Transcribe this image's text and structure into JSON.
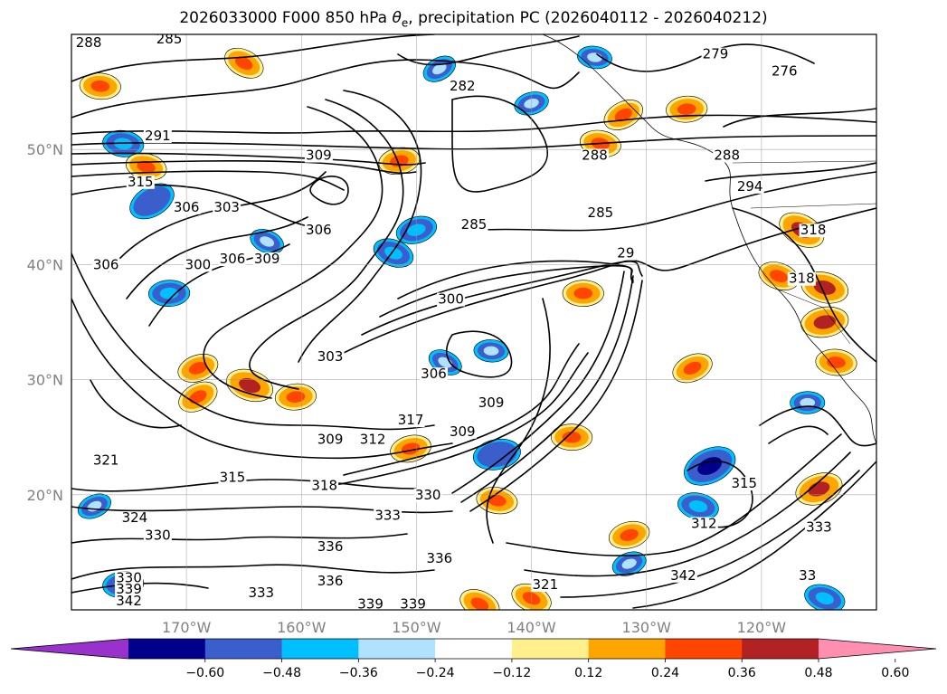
{
  "title": {
    "prefix": "2026033000 F000 850 hPa ",
    "symbol": "θ",
    "subscript": "e",
    "suffix": ", precipitation PC (2026040112 - 2026040212)"
  },
  "map": {
    "latitude_labels": [
      "50°N",
      "40°N",
      "30°N",
      "20°N"
    ],
    "longitude_labels": [
      "170°W",
      "160°W",
      "150°W",
      "140°W",
      "130°W",
      "120°W"
    ],
    "latitudes": [
      50,
      40,
      30,
      20
    ],
    "longitudes": [
      -170,
      -160,
      -150,
      -140,
      -130,
      -120
    ],
    "lat_range": [
      10,
      60
    ],
    "lon_range": [
      -180,
      -110
    ],
    "grid": true
  },
  "colorbar": {
    "tick_labels": [
      "−0.60",
      "−0.48",
      "−0.36",
      "−0.24",
      "−0.12",
      "0.12",
      "0.24",
      "0.36",
      "0.48",
      "0.60"
    ],
    "colors": [
      "#9932cc",
      "#00008b",
      "#3a5fcd",
      "#00bfff",
      "#b0e2ff",
      "#ffffff",
      "#fff08c",
      "#ffa500",
      "#ff4500",
      "#b22222",
      "#ff8fb1"
    ],
    "extend": "both"
  },
  "contour_labels": [
    {
      "text": "288",
      "lon": -178.5,
      "lat": 59.3
    },
    {
      "text": "285",
      "lon": -171.5,
      "lat": 59.6
    },
    {
      "text": "282",
      "lon": -146.0,
      "lat": 55.5
    },
    {
      "text": "279",
      "lon": -124.0,
      "lat": 58.3
    },
    {
      "text": "276",
      "lon": -118.0,
      "lat": 56.8
    },
    {
      "text": "291",
      "lon": -172.5,
      "lat": 51.2
    },
    {
      "text": "309",
      "lon": -158.5,
      "lat": 49.5
    },
    {
      "text": "315",
      "lon": -174.0,
      "lat": 47.2
    },
    {
      "text": "306",
      "lon": -170.0,
      "lat": 45.0
    },
    {
      "text": "303",
      "lon": -166.5,
      "lat": 45.0
    },
    {
      "text": "306",
      "lon": -158.5,
      "lat": 43.0
    },
    {
      "text": "306",
      "lon": -166.0,
      "lat": 40.5
    },
    {
      "text": "309",
      "lon": -163.0,
      "lat": 40.5
    },
    {
      "text": "300",
      "lon": -169.0,
      "lat": 40.0
    },
    {
      "text": "306",
      "lon": -177.0,
      "lat": 40.0
    },
    {
      "text": "285",
      "lon": -145.0,
      "lat": 43.5
    },
    {
      "text": "285",
      "lon": -134.0,
      "lat": 44.5
    },
    {
      "text": "288",
      "lon": -134.5,
      "lat": 49.5
    },
    {
      "text": "288",
      "lon": -123.0,
      "lat": 49.5
    },
    {
      "text": "294",
      "lon": -121.0,
      "lat": 46.8
    },
    {
      "text": "29",
      "lon": -131.8,
      "lat": 41.0
    },
    {
      "text": "318",
      "lon": -115.5,
      "lat": 43.0
    },
    {
      "text": "318",
      "lon": -116.5,
      "lat": 38.8
    },
    {
      "text": "300",
      "lon": -147.0,
      "lat": 37.0
    },
    {
      "text": "303",
      "lon": -157.5,
      "lat": 32.0
    },
    {
      "text": "306",
      "lon": -148.5,
      "lat": 30.5
    },
    {
      "text": "309",
      "lon": -143.5,
      "lat": 28.0
    },
    {
      "text": "309",
      "lon": -157.5,
      "lat": 24.8
    },
    {
      "text": "312",
      "lon": -153.8,
      "lat": 24.8
    },
    {
      "text": "317",
      "lon": -150.5,
      "lat": 26.5
    },
    {
      "text": "309",
      "lon": -146.0,
      "lat": 25.5
    },
    {
      "text": "321",
      "lon": -177.0,
      "lat": 23.0
    },
    {
      "text": "315",
      "lon": -166.0,
      "lat": 21.5
    },
    {
      "text": "318",
      "lon": -158.0,
      "lat": 20.8
    },
    {
      "text": "330",
      "lon": -149.0,
      "lat": 20.0
    },
    {
      "text": "333",
      "lon": -152.5,
      "lat": 18.2
    },
    {
      "text": "324",
      "lon": -174.5,
      "lat": 18.0
    },
    {
      "text": "330",
      "lon": -172.5,
      "lat": 16.5
    },
    {
      "text": "336",
      "lon": -157.5,
      "lat": 15.5
    },
    {
      "text": "336",
      "lon": -148.0,
      "lat": 14.5
    },
    {
      "text": "336",
      "lon": -157.5,
      "lat": 12.5
    },
    {
      "text": "330",
      "lon": -175.0,
      "lat": 12.8
    },
    {
      "text": "339",
      "lon": -175.0,
      "lat": 11.8
    },
    {
      "text": "342",
      "lon": -175.0,
      "lat": 10.8
    },
    {
      "text": "333",
      "lon": -163.5,
      "lat": 11.5
    },
    {
      "text": "339",
      "lon": -154.0,
      "lat": 10.5
    },
    {
      "text": "339",
      "lon": -150.3,
      "lat": 10.5
    },
    {
      "text": "321",
      "lon": -138.8,
      "lat": 12.2
    },
    {
      "text": "342",
      "lon": -126.8,
      "lat": 13.0
    },
    {
      "text": "312",
      "lon": -125.0,
      "lat": 17.5
    },
    {
      "text": "315",
      "lon": -121.5,
      "lat": 21.0
    },
    {
      "text": "333",
      "lon": -115.0,
      "lat": 17.2
    },
    {
      "text": "33",
      "lon": -116.0,
      "lat": 13.0
    }
  ],
  "precip_patches": [
    {
      "lon": -173.0,
      "lat": 45.5,
      "value": -0.48
    },
    {
      "lon": -175.5,
      "lat": 50.5,
      "value": -0.36
    },
    {
      "lon": -150.0,
      "lat": 43.0,
      "value": -0.36
    },
    {
      "lon": -152.0,
      "lat": 41.0,
      "value": -0.36
    },
    {
      "lon": -171.5,
      "lat": 37.5,
      "value": -0.36
    },
    {
      "lon": -124.5,
      "lat": 22.5,
      "value": -0.6
    },
    {
      "lon": -125.5,
      "lat": 19.0,
      "value": -0.36
    },
    {
      "lon": -143.0,
      "lat": 23.5,
      "value": -0.48
    },
    {
      "lon": -147.5,
      "lat": 31.5,
      "value": -0.24
    },
    {
      "lon": -143.5,
      "lat": 32.5,
      "value": -0.24
    },
    {
      "lon": -131.5,
      "lat": 14.0,
      "value": -0.24
    },
    {
      "lon": -114.5,
      "lat": 11.0,
      "value": -0.36
    },
    {
      "lon": -175.5,
      "lat": 12.2,
      "value": -0.36
    },
    {
      "lon": -148.0,
      "lat": 57.0,
      "value": -0.24
    },
    {
      "lon": -134.5,
      "lat": 58.0,
      "value": -0.24
    },
    {
      "lon": -140.0,
      "lat": 54.0,
      "value": -0.24
    },
    {
      "lon": -163.0,
      "lat": 42.0,
      "value": -0.24
    },
    {
      "lon": -116.0,
      "lat": 28.0,
      "value": -0.24
    },
    {
      "lon": -178.0,
      "lat": 19.0,
      "value": -0.24
    },
    {
      "lon": -173.5,
      "lat": 48.5,
      "value": 0.36
    },
    {
      "lon": -151.5,
      "lat": 49.0,
      "value": 0.36
    },
    {
      "lon": -165.0,
      "lat": 57.5,
      "value": 0.36
    },
    {
      "lon": -177.5,
      "lat": 55.5,
      "value": 0.36
    },
    {
      "lon": -169.0,
      "lat": 31.0,
      "value": 0.36
    },
    {
      "lon": -164.5,
      "lat": 29.5,
      "value": 0.48
    },
    {
      "lon": -160.5,
      "lat": 28.5,
      "value": 0.36
    },
    {
      "lon": -169.0,
      "lat": 28.5,
      "value": 0.36
    },
    {
      "lon": -143.0,
      "lat": 19.5,
      "value": 0.36
    },
    {
      "lon": -131.5,
      "lat": 16.5,
      "value": 0.36
    },
    {
      "lon": -140.0,
      "lat": 11.0,
      "value": 0.36
    },
    {
      "lon": -135.5,
      "lat": 37.5,
      "value": 0.36
    },
    {
      "lon": -126.0,
      "lat": 31.0,
      "value": 0.36
    },
    {
      "lon": -114.5,
      "lat": 38.0,
      "value": 0.48
    },
    {
      "lon": -114.5,
      "lat": 35.0,
      "value": 0.48
    },
    {
      "lon": -116.5,
      "lat": 43.0,
      "value": 0.48
    },
    {
      "lon": -113.5,
      "lat": 31.5,
      "value": 0.36
    },
    {
      "lon": -115.0,
      "lat": 20.5,
      "value": 0.48
    },
    {
      "lon": -118.5,
      "lat": 39.0,
      "value": 0.36
    },
    {
      "lon": -126.5,
      "lat": 53.5,
      "value": 0.36
    },
    {
      "lon": -132.0,
      "lat": 53.0,
      "value": 0.36
    },
    {
      "lon": -134.0,
      "lat": 50.5,
      "value": 0.36
    },
    {
      "lon": -150.5,
      "lat": 24.0,
      "value": 0.36
    },
    {
      "lon": -144.5,
      "lat": 10.5,
      "value": 0.36
    },
    {
      "lon": -136.5,
      "lat": 25.0,
      "value": 0.36
    }
  ]
}
